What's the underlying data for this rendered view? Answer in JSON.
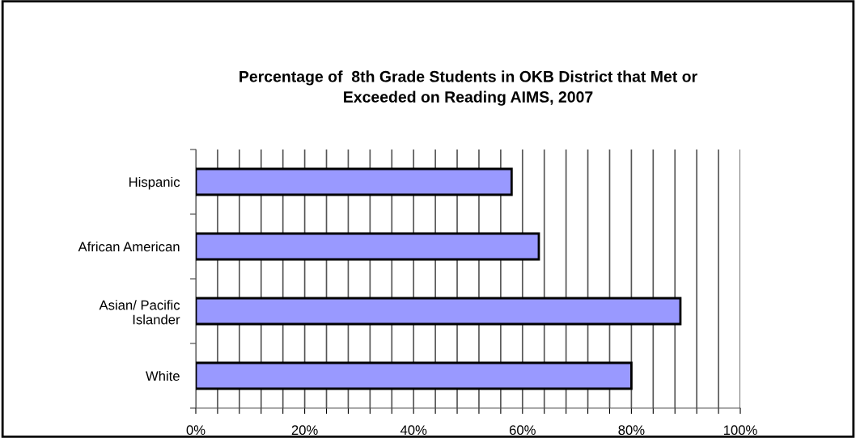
{
  "chart_data": {
    "type": "bar",
    "orientation": "horizontal",
    "title": "Percentage of  8th Grade Students in OKB District that Met or\nExceeded on Reading AIMS, 2007",
    "categories": [
      "Hispanic",
      "African American",
      "Asian/ Pacific\nIslander",
      "White"
    ],
    "values": [
      58,
      63,
      89,
      80
    ],
    "color": "#9999ff",
    "xlim": [
      0,
      100
    ],
    "xticks": [
      {
        "value": 0,
        "label": "0%"
      },
      {
        "value": 4,
        "label": null
      },
      {
        "value": 8,
        "label": null
      },
      {
        "value": 12,
        "label": null
      },
      {
        "value": 16,
        "label": null
      },
      {
        "value": 20,
        "label": "20%"
      },
      {
        "value": 24,
        "label": null
      },
      {
        "value": 28,
        "label": null
      },
      {
        "value": 32,
        "label": null
      },
      {
        "value": 36,
        "label": null
      },
      {
        "value": 40,
        "label": "40%"
      },
      {
        "value": 44,
        "label": null
      },
      {
        "value": 48,
        "label": null
      },
      {
        "value": 52,
        "label": null
      },
      {
        "value": 56,
        "label": null
      },
      {
        "value": 60,
        "label": "60%"
      },
      {
        "value": 64,
        "label": null
      },
      {
        "value": 68,
        "label": null
      },
      {
        "value": 72,
        "label": null
      },
      {
        "value": 76,
        "label": null
      },
      {
        "value": 80,
        "label": "80%"
      },
      {
        "value": 84,
        "label": null
      },
      {
        "value": 88,
        "label": null
      },
      {
        "value": 92,
        "label": null
      },
      {
        "value": 96,
        "label": null
      },
      {
        "value": 100,
        "label": "100%"
      }
    ],
    "grid": "x"
  }
}
